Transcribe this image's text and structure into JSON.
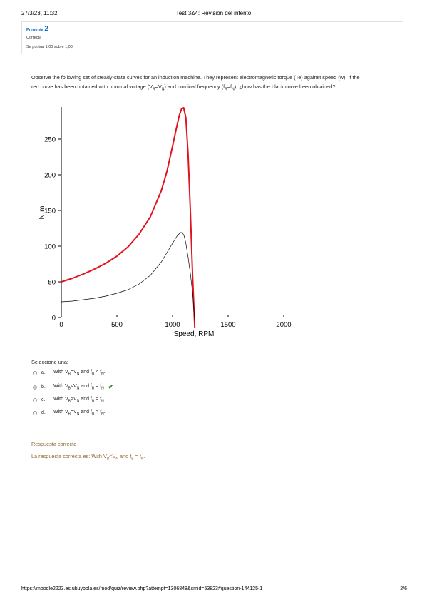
{
  "header": {
    "datetime": "27/3/23, 11:32",
    "title": "Test 3&4: Revisión del intento"
  },
  "question_info": {
    "label": "Pregunta",
    "number": "2",
    "state": "Correcta",
    "grade": "Se puntúa 1,00 sobre 1,00"
  },
  "question": {
    "text_1": "Observe the following set of steady-state curves for an induction machine. They represent electromagnetic torque (Te) against speed (w). If the",
    "text_2a": "red curve has been obtained with nominal voltage (V",
    "sub_r": "R",
    "text_2b": "=V",
    "sub_n": "N",
    "text_2c": ") and nominal frequency (f",
    "text_2d": "=f",
    "text_2e": "), ¿how has the black curve been obtained?"
  },
  "chart_data": {
    "type": "line",
    "xlabel": "Speed, RPM",
    "ylabel": "N·m",
    "xlim": [
      0,
      2000
    ],
    "ylim": [
      0,
      290
    ],
    "xticks": [
      0,
      500,
      1000,
      1500,
      2000
    ],
    "yticks": [
      0,
      50,
      100,
      150,
      200,
      250
    ],
    "grid": false,
    "series": [
      {
        "color": "#e0141e",
        "x": [
          0,
          100,
          200,
          300,
          400,
          500,
          600,
          700,
          800,
          900,
          950,
          1000,
          1030,
          1060,
          1080,
          1100,
          1120,
          1140,
          1160,
          1180,
          1200
        ],
        "y": [
          50,
          55,
          61,
          68,
          76,
          86,
          99,
          117,
          141,
          178,
          205,
          240,
          262,
          283,
          292,
          294,
          280,
          230,
          150,
          60,
          -15
        ]
      },
      {
        "color": "#000000",
        "x": [
          0,
          100,
          200,
          300,
          400,
          500,
          600,
          700,
          800,
          900,
          950,
          1000,
          1040,
          1070,
          1090,
          1105,
          1120,
          1140,
          1160,
          1180,
          1200
        ],
        "y": [
          22,
          23,
          25,
          27,
          30,
          34,
          39,
          47,
          59,
          78,
          91,
          104,
          114,
          119,
          119,
          114,
          104,
          85,
          62,
          35,
          -5
        ]
      }
    ]
  },
  "answers": {
    "prompt": "Seleccione una:",
    "options": [
      {
        "letter": "a.",
        "p1": "With V",
        "s1": "B",
        "p2": "=V",
        "s2": "N",
        "p3": " and f",
        "s3": "B",
        "p4": " < f",
        "s4": "N",
        "p5": ".",
        "selected": false,
        "correct_mark": false
      },
      {
        "letter": "b.",
        "p1": "With V",
        "s1": "B",
        "p2": "<V",
        "s2": "N",
        "p3": " and f",
        "s3": "B",
        "p4": " = f",
        "s4": "N",
        "p5": ".",
        "selected": true,
        "correct_mark": true
      },
      {
        "letter": "c.",
        "p1": "With V",
        "s1": "B",
        "p2": ">V",
        "s2": "N",
        "p3": " and f",
        "s3": "B",
        "p4": " = f",
        "s4": "N",
        "p5": ".",
        "selected": false,
        "correct_mark": false
      },
      {
        "letter": "d.",
        "p1": "With V",
        "s1": "B",
        "p2": "=V",
        "s2": "N",
        "p3": " and f",
        "s3": "B",
        "p4": " > f",
        "s4": "N",
        "p5": ".",
        "selected": false,
        "correct_mark": false
      }
    ],
    "check_icon": "check-icon"
  },
  "feedback": {
    "result": "Respuesta correcta",
    "p1": "La respuesta correcta es: With V",
    "s1": "B",
    "p2": "<V",
    "s2": "N",
    "p3": " and f",
    "s3": "B",
    "p4": " = f",
    "s4": "N",
    "p5": "."
  },
  "footer": {
    "url": "https://moodle2223.es.ubuybola.es/mod/quiz/review.php?attempt=1306848&cmid=53823#question-144125-1",
    "page": "2/6"
  },
  "colors": {
    "link": "#0f6cbf",
    "feedback": "#8e662e",
    "check": "#357a32",
    "red_curve": "#e0141e"
  }
}
